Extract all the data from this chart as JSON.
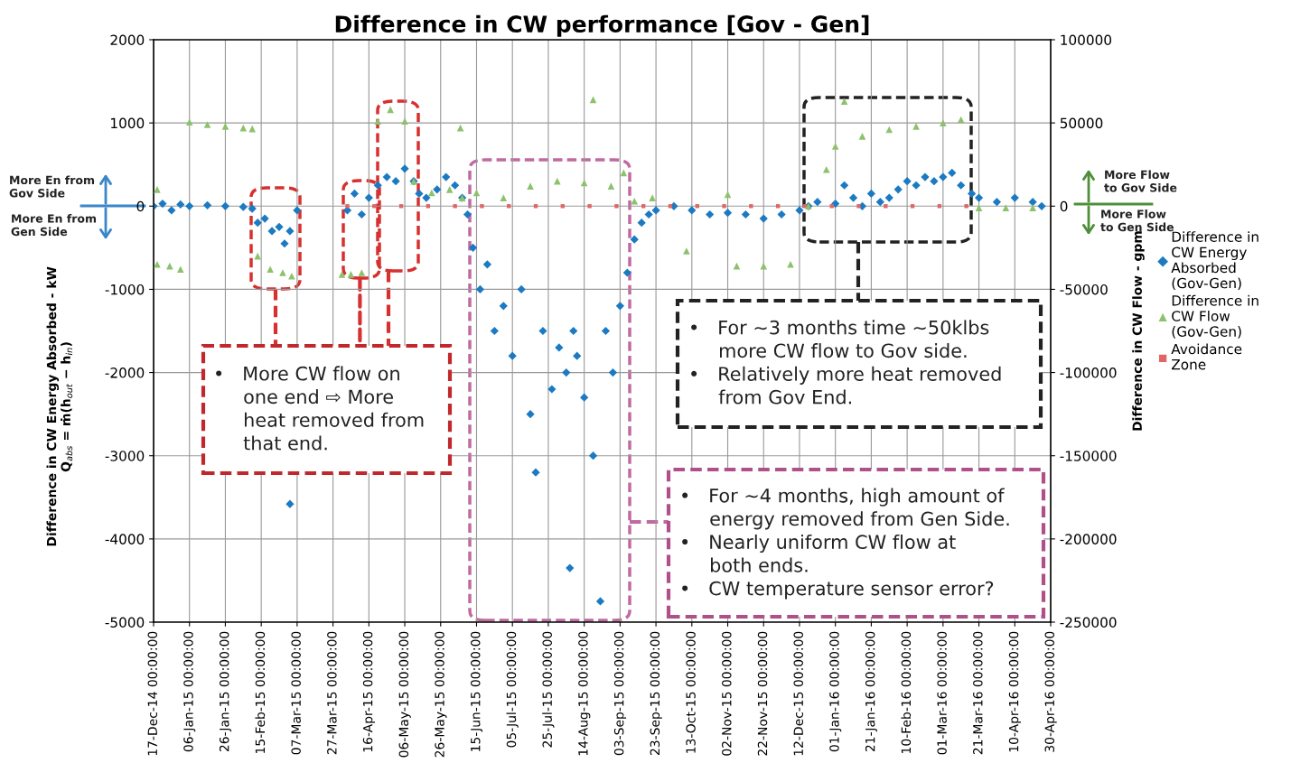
{
  "chart_data": {
    "type": "scatter",
    "title": "Difference in CW performance [Gov - Gen]",
    "ylabel": "Difference in CW Energy Absorbed - kW\nQ$_{abs}$ = ṁ(h$_{out}$ − h$_{in}$)",
    "y2label": "Difference in CW Flow - gpm",
    "ylim": [
      -5000,
      2000
    ],
    "yticks": [
      -5000,
      -4000,
      -3000,
      -2000,
      -1000,
      0,
      1000,
      2000
    ],
    "y2lim": [
      -250000,
      100000
    ],
    "y2ticks": [
      -250000,
      -200000,
      -150000,
      -100000,
      -50000,
      0,
      50000,
      100000
    ],
    "xlim": [
      "2014-12-17",
      "2016-04-30"
    ],
    "xticks": [
      {
        "value": "2014-12-17",
        "label": "17-Dec-14 00:00:00"
      },
      {
        "value": "2015-01-06",
        "label": "06-Jan-15 00:00:00"
      },
      {
        "value": "2015-01-26",
        "label": "26-Jan-15 00:00:00"
      },
      {
        "value": "2015-02-15",
        "label": "15-Feb-15 00:00:00"
      },
      {
        "value": "2015-03-07",
        "label": "07-Mar-15 00:00:00"
      },
      {
        "value": "2015-03-27",
        "label": "27-Mar-15 00:00:00"
      },
      {
        "value": "2015-04-16",
        "label": "16-Apr-15 00:00:00"
      },
      {
        "value": "2015-05-06",
        "label": "06-May-15 00:00:00"
      },
      {
        "value": "2015-05-26",
        "label": "26-May-15 00:00:00"
      },
      {
        "value": "2015-06-15",
        "label": "15-Jun-15 00:00:00"
      },
      {
        "value": "2015-07-05",
        "label": "05-Jul-15 00:00:00"
      },
      {
        "value": "2015-07-25",
        "label": "25-Jul-15 00:00:00"
      },
      {
        "value": "2015-08-14",
        "label": "14-Aug-15 00:00:00"
      },
      {
        "value": "2015-09-03",
        "label": "03-Sep-15 00:00:00"
      },
      {
        "value": "2015-09-23",
        "label": "23-Sep-15 00:00:00"
      },
      {
        "value": "2015-10-13",
        "label": "13-Oct-15 00:00:00"
      },
      {
        "value": "2015-11-02",
        "label": "02-Nov-15 00:00:00"
      },
      {
        "value": "2015-11-22",
        "label": "22-Nov-15 00:00:00"
      },
      {
        "value": "2015-12-12",
        "label": "12-Dec-15 00:00:00"
      },
      {
        "value": "2016-01-01",
        "label": "01-Jan-16 00:00:00"
      },
      {
        "value": "2016-01-21",
        "label": "21-Jan-16 00:00:00"
      },
      {
        "value": "2016-02-10",
        "label": "10-Feb-16 00:00:00"
      },
      {
        "value": "2016-03-01",
        "label": "01-Mar-16 00:00:00"
      },
      {
        "value": "2016-03-21",
        "label": "21-Mar-16 00:00:00"
      },
      {
        "value": "2016-04-10",
        "label": "10-Apr-16 00:00:00"
      },
      {
        "value": "2016-04-30",
        "label": "30-Apr-16 00:00:00"
      }
    ],
    "grid": true,
    "legend": "right",
    "series": [
      {
        "name": "Difference in\nCW Energy\nAbsorbed\n(Gov-Gen)",
        "color": "#1b7ac2",
        "marker": "diamond",
        "x": [
          "2014-12-17",
          "2014-12-22",
          "2014-12-27",
          "2015-01-01",
          "2015-01-06",
          "2015-01-16",
          "2015-01-26",
          "2015-02-05",
          "2015-02-10",
          "2015-02-13",
          "2015-02-17",
          "2015-02-21",
          "2015-02-25",
          "2015-02-28",
          "2015-03-03",
          "2015-03-03",
          "2015-03-07",
          "2015-04-04",
          "2015-04-08",
          "2015-04-12",
          "2015-04-16",
          "2015-04-21",
          "2015-04-26",
          "2015-05-01",
          "2015-05-06",
          "2015-05-11",
          "2015-05-14",
          "2015-05-18",
          "2015-05-24",
          "2015-05-29",
          "2015-06-03",
          "2015-06-07",
          "2015-06-10",
          "2015-06-13",
          "2015-06-17",
          "2015-06-21",
          "2015-06-25",
          "2015-06-30",
          "2015-07-05",
          "2015-07-10",
          "2015-07-15",
          "2015-07-18",
          "2015-07-22",
          "2015-07-27",
          "2015-07-31",
          "2015-08-04",
          "2015-08-06",
          "2015-08-08",
          "2015-08-10",
          "2015-08-14",
          "2015-08-19",
          "2015-08-23",
          "2015-08-26",
          "2015-08-30",
          "2015-09-03",
          "2015-09-07",
          "2015-09-11",
          "2015-09-15",
          "2015-09-19",
          "2015-09-23",
          "2015-10-03",
          "2015-10-13",
          "2015-10-23",
          "2015-11-02",
          "2015-11-12",
          "2015-11-22",
          "2015-12-02",
          "2015-12-12",
          "2015-12-17",
          "2015-12-22",
          "2016-01-01",
          "2016-01-06",
          "2016-01-11",
          "2016-01-16",
          "2016-01-21",
          "2016-01-26",
          "2016-01-31",
          "2016-02-05",
          "2016-02-10",
          "2016-02-15",
          "2016-02-20",
          "2016-02-25",
          "2016-03-01",
          "2016-03-06",
          "2016-03-11",
          "2016-03-17",
          "2016-03-21",
          "2016-03-31",
          "2016-04-10",
          "2016-04-20",
          "2016-04-25"
        ],
        "values": [
          0,
          30,
          -50,
          20,
          0,
          10,
          0,
          -10,
          -30,
          -200,
          -150,
          -300,
          -250,
          -450,
          -300,
          -3580,
          -50,
          -50,
          150,
          -100,
          100,
          250,
          350,
          300,
          450,
          300,
          150,
          100,
          200,
          350,
          250,
          100,
          -100,
          -500,
          -1000,
          -700,
          -1500,
          -1200,
          -1800,
          -1000,
          -2500,
          -3200,
          -1500,
          -2200,
          -1700,
          -2000,
          -4350,
          -1500,
          -1800,
          -2300,
          -3000,
          -4750,
          -1500,
          -2000,
          -1200,
          -800,
          -400,
          -200,
          -100,
          -50,
          0,
          -50,
          -100,
          -80,
          -100,
          -150,
          -100,
          -50,
          0,
          50,
          30,
          250,
          100,
          0,
          150,
          50,
          100,
          200,
          300,
          250,
          350,
          300,
          350,
          400,
          250,
          150,
          100,
          50,
          100,
          50,
          0
        ]
      },
      {
        "name": "Difference in\nCW Flow\n(Gov-Gen)",
        "color": "#8dc26c",
        "marker": "triangle",
        "axis": "y2",
        "x": [
          "2014-12-19",
          "2014-12-19",
          "2014-12-26",
          "2015-01-01",
          "2015-01-06",
          "2015-01-16",
          "2015-01-26",
          "2015-02-05",
          "2015-02-10",
          "2015-02-13",
          "2015-02-20",
          "2015-02-27",
          "2015-03-04",
          "2015-04-01",
          "2015-04-06",
          "2015-04-12",
          "2015-04-21",
          "2015-04-28",
          "2015-05-06",
          "2015-05-11",
          "2015-05-21",
          "2015-05-31",
          "2015-06-07",
          "2015-06-06",
          "2015-06-15",
          "2015-06-30",
          "2015-07-15",
          "2015-07-30",
          "2015-08-14",
          "2015-08-19",
          "2015-08-29",
          "2015-09-05",
          "2015-09-11",
          "2015-09-21",
          "2015-10-10",
          "2015-11-02",
          "2015-11-07",
          "2015-11-22",
          "2015-12-07",
          "2015-12-17",
          "2015-12-27",
          "2016-01-01",
          "2016-01-06",
          "2016-01-16",
          "2016-01-31",
          "2016-02-15",
          "2016-03-01",
          "2016-03-11",
          "2016-03-21",
          "2016-04-05",
          "2016-04-20"
        ],
        "values": [
          -35000,
          10000,
          -36000,
          -38000,
          50500,
          49000,
          48000,
          47000,
          46500,
          -30000,
          -38000,
          -40000,
          -42000,
          -41000,
          -41000,
          -40000,
          51000,
          58000,
          51000,
          15000,
          8000,
          10000,
          5000,
          47000,
          8000,
          5000,
          12000,
          15000,
          14000,
          64000,
          12000,
          20000,
          3000,
          5000,
          -27000,
          7000,
          -36000,
          -36000,
          -35000,
          0,
          22000,
          36000,
          63000,
          42000,
          46000,
          48000,
          50000,
          52000,
          -1000,
          -1000,
          -1000
        ]
      },
      {
        "name": "Avoidance\nZone",
        "color": "#e06666",
        "marker": "square",
        "x": [
          "2015-04-04",
          "2015-04-19",
          "2015-05-04",
          "2015-05-19",
          "2015-06-03",
          "2015-06-18",
          "2015-07-03",
          "2015-07-18",
          "2015-08-02",
          "2015-08-17",
          "2015-09-01",
          "2015-09-16",
          "2015-10-01",
          "2015-10-16",
          "2015-10-31",
          "2015-11-15",
          "2015-11-30",
          "2015-12-15",
          "2015-12-30",
          "2016-01-14",
          "2016-01-29",
          "2016-02-13",
          "2016-02-28",
          "2016-03-14"
        ],
        "values": [
          0,
          0,
          0,
          0,
          0,
          0,
          0,
          0,
          0,
          0,
          0,
          0,
          0,
          0,
          0,
          0,
          0,
          0,
          0,
          0,
          0,
          0,
          0,
          0
        ]
      }
    ],
    "annotations": [
      "More En from\nGov Side",
      "More En from\nGen Side",
      "More Flow\nto Gov Side",
      "More Flow\nto Gen Side",
      {
        "text": "•   More CW flow on\n     one end ⇨ More\n     heat removed from\n     that end.",
        "x": "2015-04-11",
        "y": -870
      },
      "•   For ~3 months time ~50klbs\n     more CW flow to Gov side.\n•   Relatively more heat removed\n     from Gov End.",
      "•   For ~4 months, high amount of\n     energy removed from Gen Side.\n•   Nearly uniform CW flow at\n     both ends.\n•   CW temperature sensor error?"
    ]
  }
}
